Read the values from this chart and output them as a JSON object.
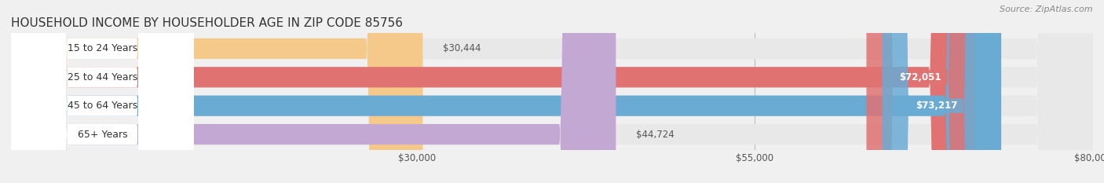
{
  "title": "HOUSEHOLD INCOME BY HOUSEHOLDER AGE IN ZIP CODE 85756",
  "source": "Source: ZipAtlas.com",
  "categories": [
    "15 to 24 Years",
    "25 to 44 Years",
    "45 to 64 Years",
    "65+ Years"
  ],
  "values": [
    30444,
    72051,
    73217,
    44724
  ],
  "bar_colors": [
    "#f5c98a",
    "#e07272",
    "#6aabd4",
    "#c4a8d4"
  ],
  "bar_bg_color": "#e8e8e8",
  "label_pill_color": "#f0f0f0",
  "xlim_min": 0,
  "xlim_max": 80000,
  "xticks": [
    30000,
    55000,
    80000
  ],
  "xtick_labels": [
    "$30,000",
    "$55,000",
    "$80,000"
  ],
  "figsize": [
    14.06,
    2.33
  ],
  "dpi": 100,
  "bg_color": "#f0f0f0",
  "bar_height": 0.72,
  "value_labels": [
    "$30,444",
    "$72,051",
    "$73,217",
    "$44,724"
  ],
  "value_inside": [
    false,
    true,
    true,
    false
  ],
  "title_fontsize": 11,
  "source_fontsize": 8,
  "label_fontsize": 9,
  "value_fontsize": 8.5
}
